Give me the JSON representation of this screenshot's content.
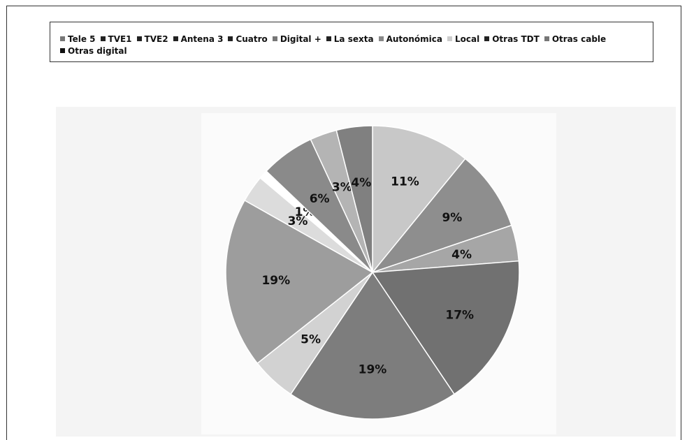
{
  "chart_data": {
    "type": "pie",
    "legend_position": "top",
    "categories": [
      "Tele 5",
      "TVE1",
      "TVE2",
      "Antena 3",
      "Cuatro",
      "Digital +",
      "La sexta",
      "Autonómica",
      "Local",
      "Otras TDT",
      "Otras cable",
      "Otras digital"
    ],
    "values": [
      11,
      9,
      4,
      17,
      19,
      5,
      19,
      3,
      1,
      6,
      3,
      4
    ],
    "labels": [
      "11%",
      "9%",
      "4%",
      "17%",
      "19%",
      "5%",
      "19%",
      "3%",
      "1%",
      "6%",
      "3%",
      "4%"
    ],
    "colors": [
      "#c8c8c8",
      "#8e8e8e",
      "#a6a6a6",
      "#717171",
      "#7d7d7d",
      "#d2d2d2",
      "#9d9d9d",
      "#dcdcdc",
      "#ffffff",
      "#8a8a8a",
      "#b4b4b4",
      "#808080"
    ],
    "legend_colors": [
      "#777777",
      "#222222",
      "#222222",
      "#222222",
      "#222222",
      "#777777",
      "#222222",
      "#888888",
      "#cccccc",
      "#222222",
      "#777777",
      "#111111"
    ]
  }
}
